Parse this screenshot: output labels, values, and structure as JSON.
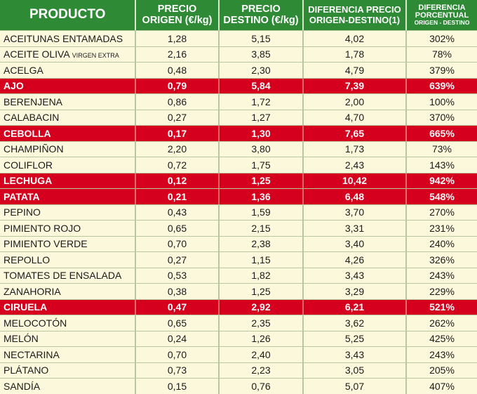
{
  "header": {
    "product": "PRODUCTO",
    "origin_line1": "PRECIO",
    "origin_line2": "ORIGEN (€/kg)",
    "dest_line1": "PRECIO",
    "dest_line2": "DESTINO (€/kg)",
    "diff_line1": "DIFERENCIA PRECIO",
    "diff_line2": "ORIGEN-DESTINO(1)",
    "pct_line1": "DIFERENCIA",
    "pct_line2": "PORCENTUAL",
    "pct_line3": "ORIGEN - DESTINO"
  },
  "rows": [
    {
      "name": "ACEITUNAS ENTAMADAS",
      "suffix": "",
      "origen": "1,28",
      "destino": "5,15",
      "diferencia": "4,02",
      "porcentaje": "302%",
      "highlight": false
    },
    {
      "name": "ACEITE OLIVA ",
      "suffix": "VIRGEN EXTRA",
      "origen": "2,16",
      "destino": "3,85",
      "diferencia": "1,78",
      "porcentaje": "78%",
      "highlight": false
    },
    {
      "name": "ACELGA",
      "suffix": "",
      "origen": "0,48",
      "destino": "2,30",
      "diferencia": "4,79",
      "porcentaje": "379%",
      "highlight": false
    },
    {
      "name": "AJO",
      "suffix": "",
      "origen": "0,79",
      "destino": "5,84",
      "diferencia": "7,39",
      "porcentaje": "639%",
      "highlight": true
    },
    {
      "name": "BERENJENA",
      "suffix": "",
      "origen": "0,86",
      "destino": "1,72",
      "diferencia": "2,00",
      "porcentaje": "100%",
      "highlight": false
    },
    {
      "name": "CALABACIN",
      "suffix": "",
      "origen": "0,27",
      "destino": "1,27",
      "diferencia": "4,70",
      "porcentaje": "370%",
      "highlight": false
    },
    {
      "name": "CEBOLLA",
      "suffix": "",
      "origen": "0,17",
      "destino": "1,30",
      "diferencia": "7,65",
      "porcentaje": "665%",
      "highlight": true
    },
    {
      "name": "CHAMPIÑON",
      "suffix": "",
      "origen": "2,20",
      "destino": "3,80",
      "diferencia": "1,73",
      "porcentaje": "73%",
      "highlight": false
    },
    {
      "name": "COLIFLOR",
      "suffix": "",
      "origen": "0,72",
      "destino": "1,75",
      "diferencia": "2,43",
      "porcentaje": "143%",
      "highlight": false
    },
    {
      "name": "LECHUGA",
      "suffix": "",
      "origen": "0,12",
      "destino": "1,25",
      "diferencia": "10,42",
      "porcentaje": "942%",
      "highlight": true
    },
    {
      "name": "PATATA",
      "suffix": "",
      "origen": "0,21",
      "destino": "1,36",
      "diferencia": "6,48",
      "porcentaje": "548%",
      "highlight": true
    },
    {
      "name": "PEPINO",
      "suffix": "",
      "origen": "0,43",
      "destino": "1,59",
      "diferencia": "3,70",
      "porcentaje": "270%",
      "highlight": false
    },
    {
      "name": "PIMIENTO ROJO",
      "suffix": "",
      "origen": "0,65",
      "destino": "2,15",
      "diferencia": "3,31",
      "porcentaje": "231%",
      "highlight": false
    },
    {
      "name": "PIMIENTO VERDE",
      "suffix": "",
      "origen": "0,70",
      "destino": "2,38",
      "diferencia": "3,40",
      "porcentaje": "240%",
      "highlight": false
    },
    {
      "name": "REPOLLO",
      "suffix": "",
      "origen": "0,27",
      "destino": "1,15",
      "diferencia": "4,26",
      "porcentaje": "326%",
      "highlight": false
    },
    {
      "name": "TOMATES DE ENSALADA",
      "suffix": "",
      "origen": "0,53",
      "destino": "1,82",
      "diferencia": "3,43",
      "porcentaje": "243%",
      "highlight": false
    },
    {
      "name": "ZANAHORIA",
      "suffix": "",
      "origen": "0,38",
      "destino": "1,25",
      "diferencia": "3,29",
      "porcentaje": "229%",
      "highlight": false
    },
    {
      "name": "CIRUELA",
      "suffix": "",
      "origen": "0,47",
      "destino": "2,92",
      "diferencia": "6,21",
      "porcentaje": "521%",
      "highlight": true
    },
    {
      "name": "MELOCOTÓN",
      "suffix": "",
      "origen": "0,65",
      "destino": "2,35",
      "diferencia": "3,62",
      "porcentaje": "262%",
      "highlight": false
    },
    {
      "name": "MELÓN",
      "suffix": "",
      "origen": "0,24",
      "destino": "1,26",
      "diferencia": "5,25",
      "porcentaje": "425%",
      "highlight": false
    },
    {
      "name": "NECTARINA",
      "suffix": "",
      "origen": "0,70",
      "destino": "2,40",
      "diferencia": "3,43",
      "porcentaje": "243%",
      "highlight": false
    },
    {
      "name": "PLÁTANO",
      "suffix": "",
      "origen": "0,73",
      "destino": "2,23",
      "diferencia": "3,05",
      "porcentaje": "205%",
      "highlight": false
    },
    {
      "name": "SANDÍA",
      "suffix": "",
      "origen": "0,15",
      "destino": "0,76",
      "diferencia": "5,07",
      "porcentaje": "407%",
      "highlight": false
    }
  ],
  "colors": {
    "header_bg": "#2e8a35",
    "row_bg": "#fcf8dc",
    "highlight_bg": "#d4001e",
    "grid": "#b9c79f"
  }
}
